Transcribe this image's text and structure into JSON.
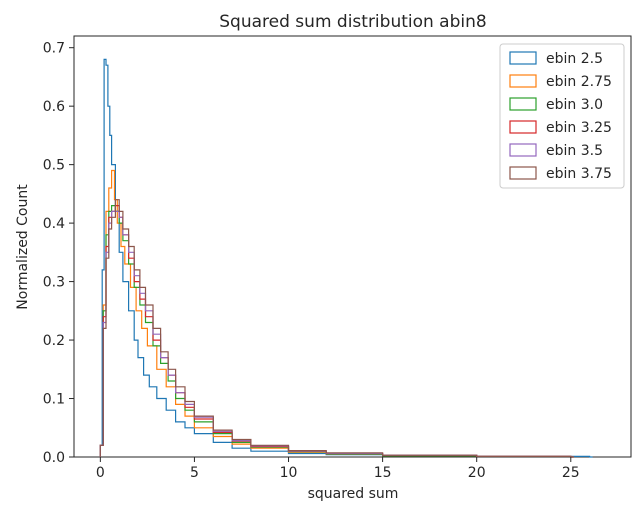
{
  "chart_data": {
    "type": "histogram-step",
    "title": "Squared sum distribution abin8",
    "xlabel": "squared sum",
    "ylabel": "Normalized Count",
    "xlim": [
      -1.4,
      28.2
    ],
    "ylim": [
      0,
      0.72
    ],
    "xticks": [
      0,
      5,
      10,
      15,
      20,
      25
    ],
    "xtick_labels": [
      "0",
      "5",
      "10",
      "15",
      "20",
      "25"
    ],
    "yticks": [
      0,
      0.1,
      0.2,
      0.3,
      0.4,
      0.5,
      0.6,
      0.7
    ],
    "ytick_labels": [
      "0.0",
      "0.1",
      "0.2",
      "0.3",
      "0.4",
      "0.5",
      "0.6",
      "0.7"
    ],
    "grid": false,
    "legend_position": "top-right",
    "series": [
      {
        "name": "ebin 2.5",
        "color": "#1f77b4",
        "x": [
          0,
          0.1,
          0.2,
          0.3,
          0.4,
          0.5,
          0.6,
          0.8,
          1.0,
          1.2,
          1.5,
          1.8,
          2.0,
          2.3,
          2.6,
          3.0,
          3.5,
          4.0,
          4.5,
          5.0,
          6.0,
          7.0,
          8.0,
          10.0,
          12.0,
          15.0,
          20.0,
          25.0,
          26.0
        ],
        "y": [
          0.02,
          0.32,
          0.68,
          0.67,
          0.6,
          0.55,
          0.5,
          0.42,
          0.35,
          0.3,
          0.25,
          0.2,
          0.17,
          0.14,
          0.12,
          0.1,
          0.08,
          0.06,
          0.05,
          0.04,
          0.025,
          0.015,
          0.01,
          0.006,
          0.004,
          0.002,
          0.001,
          0.001,
          0.0
        ]
      },
      {
        "name": "ebin 2.75",
        "color": "#ff7f0e",
        "x": [
          0,
          0.15,
          0.3,
          0.45,
          0.6,
          0.75,
          0.9,
          1.1,
          1.3,
          1.6,
          1.9,
          2.2,
          2.5,
          3.0,
          3.5,
          4.0,
          4.5,
          5.0,
          6.0,
          7.0,
          8.0,
          10.0,
          12.0,
          15.0,
          20.0,
          25.0
        ],
        "y": [
          0.02,
          0.26,
          0.42,
          0.46,
          0.49,
          0.44,
          0.4,
          0.36,
          0.33,
          0.29,
          0.25,
          0.22,
          0.19,
          0.15,
          0.12,
          0.09,
          0.07,
          0.05,
          0.035,
          0.022,
          0.015,
          0.008,
          0.005,
          0.002,
          0.001,
          0.0
        ]
      },
      {
        "name": "ebin 3.0",
        "color": "#2ca02c",
        "x": [
          0,
          0.15,
          0.3,
          0.45,
          0.6,
          0.8,
          1.0,
          1.2,
          1.5,
          1.8,
          2.1,
          2.4,
          2.8,
          3.2,
          3.6,
          4.0,
          4.5,
          5.0,
          6.0,
          7.0,
          8.0,
          10.0,
          12.0,
          15.0,
          20.0,
          25.0
        ],
        "y": [
          0.02,
          0.25,
          0.38,
          0.42,
          0.43,
          0.42,
          0.4,
          0.37,
          0.33,
          0.29,
          0.26,
          0.23,
          0.19,
          0.16,
          0.13,
          0.1,
          0.08,
          0.06,
          0.04,
          0.025,
          0.017,
          0.009,
          0.005,
          0.002,
          0.001,
          0.0
        ]
      },
      {
        "name": "ebin 3.25",
        "color": "#d62728",
        "x": [
          0,
          0.15,
          0.3,
          0.45,
          0.6,
          0.8,
          1.0,
          1.2,
          1.5,
          1.8,
          2.1,
          2.4,
          2.8,
          3.2,
          3.6,
          4.0,
          4.5,
          5.0,
          6.0,
          7.0,
          8.0,
          10.0,
          12.0,
          15.0,
          20.0,
          25.0
        ],
        "y": [
          0.02,
          0.24,
          0.36,
          0.41,
          0.42,
          0.43,
          0.41,
          0.38,
          0.34,
          0.3,
          0.27,
          0.24,
          0.2,
          0.17,
          0.14,
          0.11,
          0.085,
          0.065,
          0.042,
          0.027,
          0.018,
          0.01,
          0.006,
          0.003,
          0.001,
          0.0
        ]
      },
      {
        "name": "ebin 3.5",
        "color": "#9467bd",
        "x": [
          0,
          0.15,
          0.3,
          0.45,
          0.6,
          0.8,
          1.0,
          1.2,
          1.5,
          1.8,
          2.1,
          2.4,
          2.8,
          3.2,
          3.6,
          4.0,
          4.5,
          5.0,
          6.0,
          7.0,
          8.0,
          10.0,
          12.0,
          15.0,
          20.0,
          25.0
        ],
        "y": [
          0.02,
          0.23,
          0.35,
          0.4,
          0.42,
          0.42,
          0.41,
          0.38,
          0.35,
          0.31,
          0.28,
          0.25,
          0.21,
          0.17,
          0.14,
          0.11,
          0.09,
          0.068,
          0.044,
          0.028,
          0.019,
          0.01,
          0.006,
          0.003,
          0.001,
          0.0
        ]
      },
      {
        "name": "ebin 3.75",
        "color": "#8c564b",
        "x": [
          0,
          0.15,
          0.3,
          0.45,
          0.6,
          0.8,
          1.0,
          1.2,
          1.5,
          1.8,
          2.1,
          2.4,
          2.8,
          3.2,
          3.6,
          4.0,
          4.5,
          5.0,
          6.0,
          7.0,
          8.0,
          10.0,
          12.0,
          15.0,
          20.0,
          25.0
        ],
        "y": [
          0.02,
          0.22,
          0.34,
          0.39,
          0.41,
          0.44,
          0.42,
          0.39,
          0.36,
          0.32,
          0.29,
          0.26,
          0.22,
          0.18,
          0.15,
          0.12,
          0.095,
          0.07,
          0.046,
          0.03,
          0.02,
          0.011,
          0.007,
          0.003,
          0.001,
          0.0
        ]
      }
    ]
  }
}
